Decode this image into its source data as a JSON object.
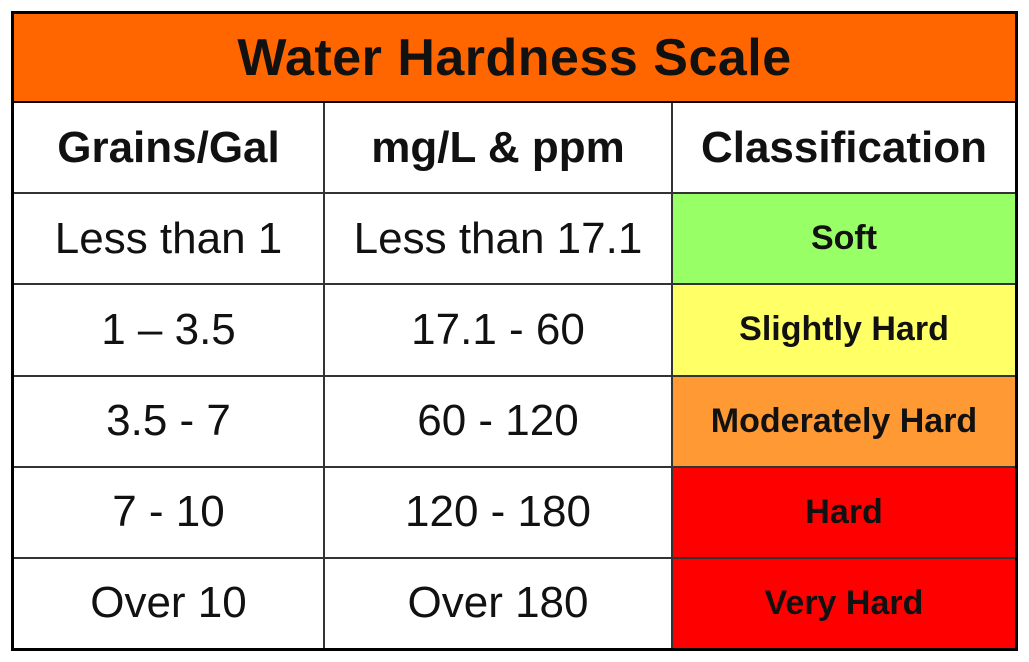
{
  "chart_data": {
    "type": "table",
    "title": "Water Hardness Scale",
    "columns": [
      "Grains/Gal",
      "mg/L & ppm",
      "Classification"
    ],
    "rows": [
      {
        "grains": "Less than 1",
        "mgl": "Less than 17.1",
        "classification": "Soft",
        "color": "#99ff66"
      },
      {
        "grains": "1 – 3.5",
        "mgl": "17.1 - 60",
        "classification": "Slightly Hard",
        "color": "#ffff66"
      },
      {
        "grains": "3.5 - 7",
        "mgl": "60 - 120",
        "classification": "Moderately Hard",
        "color": "#ff9933"
      },
      {
        "grains": "7 - 10",
        "mgl": "120 - 180",
        "classification": "Hard",
        "color": "#ff0000"
      },
      {
        "grains": "Over 10",
        "mgl": "Over 180",
        "classification": "Very Hard",
        "color": "#ff0000"
      }
    ]
  },
  "colors": {
    "title_background": "#ff6600"
  }
}
